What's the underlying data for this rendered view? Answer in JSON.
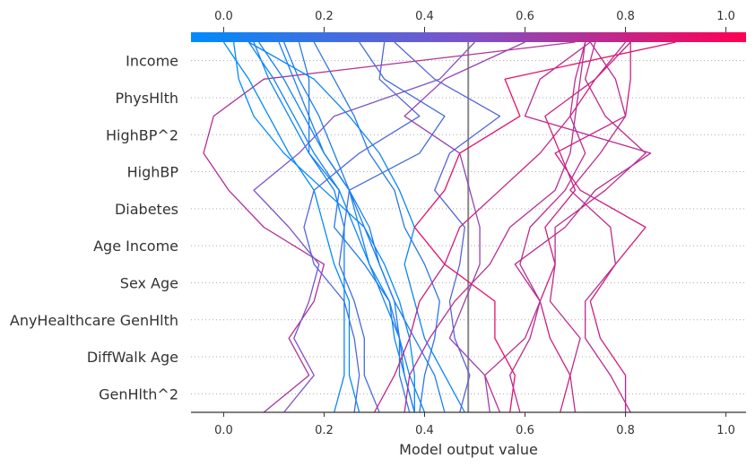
{
  "chart_data": {
    "type": "line",
    "subtype": "shap-decision-plot",
    "title": "",
    "xlabel": "Model output value",
    "ylabel": "",
    "xlim": [
      -0.065,
      1.04
    ],
    "xticks": [
      0.0,
      0.2,
      0.4,
      0.6,
      0.8,
      1.0
    ],
    "xtick_labels": [
      "0.0",
      "0.2",
      "0.4",
      "0.6",
      "0.8",
      "1.0"
    ],
    "top_tick_labels": [
      "0.0",
      "0.2",
      "0.4",
      "0.6",
      "0.8",
      "1.0"
    ],
    "base_value": 0.487,
    "features_bottom_to_top": [
      "GenHlth^2",
      "DiffWalk Age",
      "AnyHealthcare GenHlth",
      "Sex Age",
      "Age Income",
      "Diabetes",
      "HighBP",
      "HighBP^2",
      "PhysHlth",
      "Income"
    ],
    "colormap": {
      "low": "#008bfb",
      "mid": "#7e52c7",
      "high": "#ff0052",
      "range": [
        0.0,
        1.0
      ]
    },
    "grid": "dotted horizontal lines between features",
    "series_note": "each path lists model output from bottom (base, before GenHlth^2) to top (final prediction, after Income)",
    "paths": [
      [
        0.08,
        0.17,
        0.13,
        0.18,
        0.2,
        0.08,
        0.01,
        -0.04,
        -0.02,
        0.08,
        0.7
      ],
      [
        0.12,
        0.18,
        0.14,
        0.17,
        0.19,
        0.13,
        0.06,
        0.15,
        0.22,
        0.43,
        0.5
      ],
      [
        0.26,
        0.27,
        0.26,
        0.24,
        0.18,
        0.16,
        0.18,
        0.27,
        0.39,
        0.31,
        0.32
      ],
      [
        0.31,
        0.28,
        0.28,
        0.26,
        0.23,
        0.24,
        0.25,
        0.39,
        0.44,
        0.32,
        0.27
      ],
      [
        0.37,
        0.35,
        0.35,
        0.33,
        0.28,
        0.22,
        0.23,
        0.17,
        0.17,
        0.17,
        0.15
      ],
      [
        0.38,
        0.38,
        0.37,
        0.35,
        0.32,
        0.28,
        0.2,
        0.12,
        0.06,
        0.03,
        0.02
      ],
      [
        0.38,
        0.36,
        0.34,
        0.33,
        0.29,
        0.26,
        0.23,
        0.18,
        0.14,
        0.1,
        0.05
      ],
      [
        0.27,
        0.25,
        0.25,
        0.25,
        0.22,
        0.2,
        0.18,
        0.13,
        0.09,
        0.05,
        0.0
      ],
      [
        0.22,
        0.24,
        0.24,
        0.24,
        0.24,
        0.24,
        0.22,
        0.17,
        0.13,
        0.09,
        0.06
      ],
      [
        0.44,
        0.42,
        0.38,
        0.34,
        0.31,
        0.28,
        0.25,
        0.22,
        0.19,
        0.15,
        0.12
      ],
      [
        0.39,
        0.4,
        0.42,
        0.43,
        0.4,
        0.36,
        0.34,
        0.29,
        0.26,
        0.22,
        0.18
      ],
      [
        0.4,
        0.37,
        0.35,
        0.32,
        0.29,
        0.27,
        0.25,
        0.2,
        0.16,
        0.12,
        0.07
      ],
      [
        0.38,
        0.36,
        0.35,
        0.34,
        0.31,
        0.29,
        0.25,
        0.2,
        0.17,
        0.14,
        0.11
      ],
      [
        0.48,
        0.44,
        0.4,
        0.38,
        0.36,
        0.38,
        0.35,
        0.31,
        0.25,
        0.18,
        0.05
      ],
      [
        0.47,
        0.49,
        0.46,
        0.45,
        0.47,
        0.48,
        0.42,
        0.45,
        0.55,
        0.42,
        0.34
      ],
      [
        0.57,
        0.58,
        0.54,
        0.54,
        0.44,
        0.38,
        0.44,
        0.47,
        0.59,
        0.56,
        0.9
      ],
      [
        0.53,
        0.52,
        0.45,
        0.48,
        0.51,
        0.51,
        0.49,
        0.47,
        0.36,
        0.44,
        0.6
      ],
      [
        0.7,
        0.69,
        0.71,
        0.65,
        0.66,
        0.66,
        0.76,
        0.84,
        0.76,
        0.72,
        0.74
      ],
      [
        0.8,
        0.8,
        0.75,
        0.73,
        0.78,
        0.84,
        0.71,
        0.66,
        0.8,
        0.81,
        0.81
      ],
      [
        0.81,
        0.77,
        0.72,
        0.72,
        0.78,
        0.77,
        0.69,
        0.75,
        0.8,
        0.78,
        0.73
      ],
      [
        0.67,
        0.69,
        0.65,
        0.63,
        0.66,
        0.64,
        0.7,
        0.67,
        0.64,
        0.74,
        0.81
      ],
      [
        0.55,
        0.52,
        0.6,
        0.63,
        0.59,
        0.61,
        0.68,
        0.72,
        0.69,
        0.7,
        0.72
      ],
      [
        0.59,
        0.57,
        0.61,
        0.63,
        0.58,
        0.68,
        0.74,
        0.85,
        0.6,
        0.63,
        0.73
      ],
      [
        0.36,
        0.37,
        0.41,
        0.46,
        0.53,
        0.57,
        0.66,
        0.69,
        0.7,
        0.71,
        0.72
      ],
      [
        0.3,
        0.34,
        0.37,
        0.39,
        0.44,
        0.47,
        0.55,
        0.63,
        0.69,
        0.74,
        0.8
      ]
    ]
  }
}
